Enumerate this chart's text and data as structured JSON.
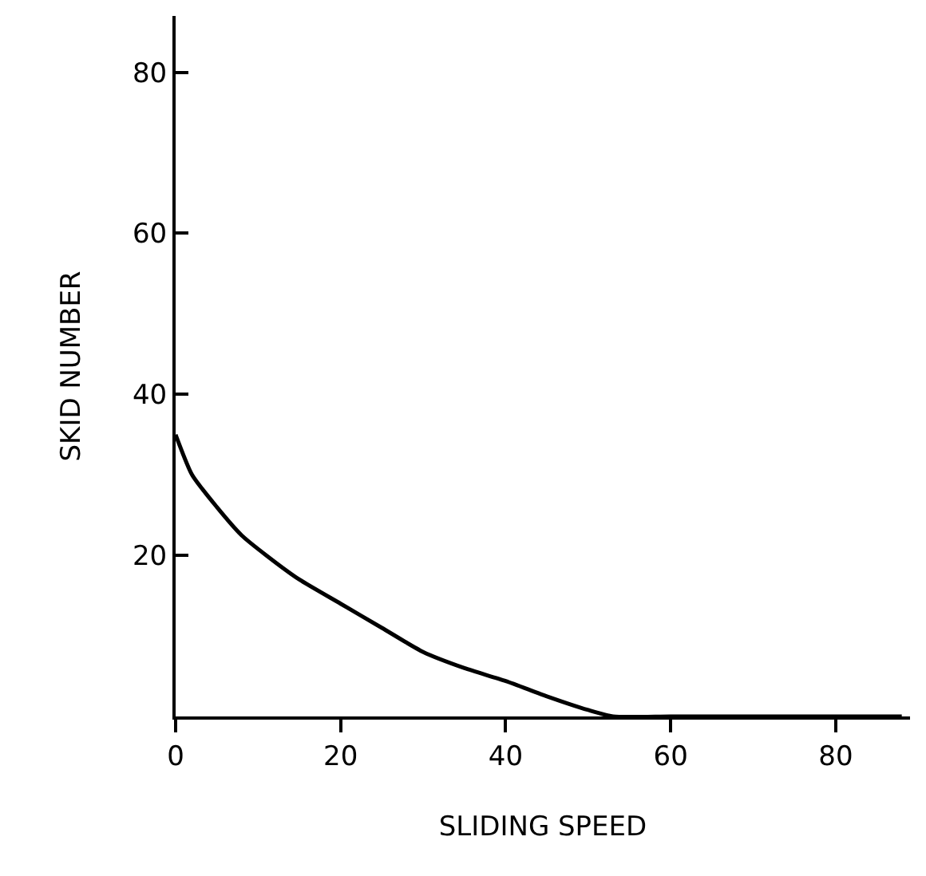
{
  "chart_data": {
    "type": "line",
    "xlabel": "SLIDING SPEED",
    "ylabel": "SKID NUMBER",
    "x": [
      0,
      2,
      5,
      8,
      11,
      15,
      20,
      25,
      30,
      35,
      40,
      45,
      50,
      53,
      60,
      70,
      80,
      88
    ],
    "series": [
      {
        "color": "#000000",
        "values": [
          35,
          30,
          26,
          22.5,
          20,
          17,
          14,
          11,
          8,
          6,
          4.4,
          2.5,
          0.8,
          0,
          0,
          0,
          0,
          0
        ]
      }
    ],
    "xlim": [
      0,
      89
    ],
    "ylim": [
      0,
      87
    ],
    "xticks": [
      0,
      20,
      40,
      60,
      80
    ],
    "yticks": [
      20,
      40,
      60,
      80
    ],
    "marker": "none",
    "line_style": "solid"
  }
}
